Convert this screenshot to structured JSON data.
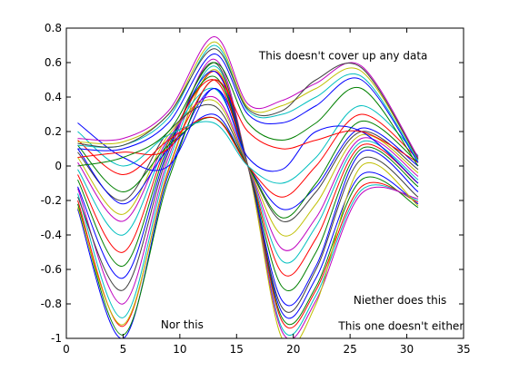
{
  "chart_data": {
    "type": "line",
    "title": "",
    "xlabel": "",
    "ylabel": "",
    "xlim": [
      0,
      35
    ],
    "ylim": [
      -1,
      0.8
    ],
    "grid": false,
    "x_ticks": [
      "0",
      "5",
      "10",
      "15",
      "20",
      "25",
      "30",
      "35"
    ],
    "y_ticks": [
      "-1",
      "-0.8",
      "-0.6",
      "-0.4",
      "-0.2",
      "0",
      "0.2",
      "0.4",
      "0.6",
      "0.8"
    ],
    "x": [
      1,
      5,
      9,
      13,
      16,
      19,
      22,
      26,
      31
    ],
    "annotations": [
      {
        "text": "This doesn't cover up any data",
        "x": 24.4,
        "y": 0.64
      },
      {
        "text": "Niether does this",
        "x": 29.4,
        "y": -0.78
      },
      {
        "text": "This one doesn't either",
        "x": 29.5,
        "y": -0.93
      },
      {
        "text": "Nor this",
        "x": 10.2,
        "y": -0.92
      }
    ],
    "series": [
      {
        "color": "#0000ff",
        "values": [
          -0.25,
          -1.0,
          -0.05,
          0.45,
          0.0,
          -0.85,
          -0.65,
          -0.05,
          -0.22
        ]
      },
      {
        "color": "#008000",
        "values": [
          -0.22,
          -0.98,
          -0.08,
          0.5,
          0.0,
          -0.88,
          -0.7,
          -0.08,
          -0.24
        ]
      },
      {
        "color": "#ff0000",
        "values": [
          -0.2,
          -0.93,
          -0.02,
          0.55,
          0.0,
          -0.9,
          -0.72,
          -0.12,
          -0.21
        ]
      },
      {
        "color": "#00bfbf",
        "values": [
          -0.16,
          -0.88,
          0.02,
          0.58,
          0.0,
          -0.94,
          -0.75,
          -0.14,
          -0.2
        ]
      },
      {
        "color": "#bf00bf",
        "values": [
          -0.13,
          -0.8,
          0.05,
          0.62,
          0.0,
          -0.96,
          -0.78,
          -0.16,
          -0.19
        ]
      },
      {
        "color": "#bfbf00",
        "values": [
          -0.24,
          -0.92,
          -0.03,
          0.56,
          0.0,
          -1.0,
          -0.8,
          0.0,
          -0.23
        ]
      },
      {
        "color": "#404040",
        "values": [
          -0.18,
          -0.72,
          0.08,
          0.6,
          0.0,
          -0.82,
          -0.6,
          0.04,
          -0.18
        ]
      },
      {
        "color": "#0000ff",
        "values": [
          -0.12,
          -0.65,
          0.1,
          0.55,
          0.0,
          -0.78,
          -0.58,
          0.08,
          -0.15
        ]
      },
      {
        "color": "#008000",
        "values": [
          -0.08,
          -0.58,
          0.12,
          0.52,
          0.0,
          -0.7,
          -0.5,
          0.1,
          -0.12
        ]
      },
      {
        "color": "#ff0000",
        "values": [
          -0.05,
          -0.5,
          0.14,
          0.5,
          0.0,
          -0.62,
          -0.42,
          0.12,
          -0.1
        ]
      },
      {
        "color": "#00bfbf",
        "values": [
          -0.02,
          -0.4,
          0.15,
          0.45,
          0.0,
          -0.55,
          -0.35,
          0.14,
          -0.08
        ]
      },
      {
        "color": "#bf00bf",
        "values": [
          0.02,
          -0.32,
          0.16,
          0.4,
          0.0,
          -0.48,
          -0.3,
          0.16,
          -0.06
        ]
      },
      {
        "color": "#bfbf00",
        "values": [
          0.05,
          -0.28,
          0.18,
          0.38,
          0.0,
          -0.4,
          -0.22,
          0.18,
          -0.04
        ]
      },
      {
        "color": "#404040",
        "values": [
          0.08,
          -0.2,
          0.2,
          0.35,
          0.0,
          -0.32,
          -0.15,
          0.2,
          -0.02
        ]
      },
      {
        "color": "#0000ff",
        "values": [
          0.1,
          -0.22,
          0.1,
          0.3,
          0.0,
          -0.25,
          -0.12,
          0.22,
          0.0
        ]
      },
      {
        "color": "#008000",
        "values": [
          0.12,
          -0.15,
          0.12,
          0.28,
          0.0,
          -0.3,
          -0.1,
          0.26,
          0.02
        ]
      },
      {
        "color": "#ff0000",
        "values": [
          0.15,
          -0.05,
          0.15,
          0.28,
          0.0,
          -0.18,
          0.0,
          0.3,
          0.04
        ]
      },
      {
        "color": "#00bfbf",
        "values": [
          0.2,
          0.0,
          0.18,
          0.25,
          0.0,
          -0.1,
          0.05,
          0.35,
          0.06
        ]
      },
      {
        "color": "#0000ff",
        "values": [
          0.25,
          0.05,
          0.0,
          0.45,
          0.05,
          -0.02,
          0.2,
          0.2,
          -0.1
        ]
      },
      {
        "color": "#ff0000",
        "values": [
          0.05,
          0.08,
          0.1,
          0.5,
          0.2,
          0.1,
          0.15,
          0.2,
          0.02
        ]
      },
      {
        "color": "#008000",
        "values": [
          0.0,
          0.05,
          0.2,
          0.6,
          0.25,
          0.15,
          0.25,
          0.45,
          0.0
        ]
      },
      {
        "color": "#0000ff",
        "values": [
          0.1,
          0.1,
          0.25,
          0.65,
          0.3,
          0.25,
          0.35,
          0.5,
          0.02
        ]
      },
      {
        "color": "#00bfbf",
        "values": [
          0.12,
          0.12,
          0.28,
          0.7,
          0.32,
          0.3,
          0.4,
          0.52,
          0.03
        ]
      },
      {
        "color": "#bfbf00",
        "values": [
          0.14,
          0.14,
          0.3,
          0.72,
          0.34,
          0.35,
          0.45,
          0.55,
          0.04
        ]
      },
      {
        "color": "#bf00bf",
        "values": [
          0.16,
          0.16,
          0.32,
          0.75,
          0.36,
          0.38,
          0.48,
          0.58,
          0.05
        ]
      },
      {
        "color": "#404040",
        "values": [
          0.13,
          0.12,
          0.3,
          0.68,
          0.33,
          0.32,
          0.5,
          0.57,
          0.04
        ]
      }
    ]
  }
}
